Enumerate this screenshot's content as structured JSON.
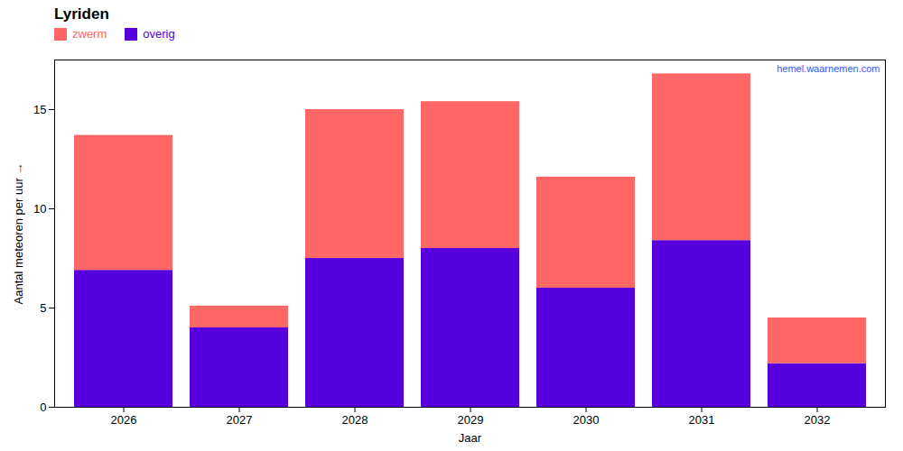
{
  "chart_data": {
    "type": "bar",
    "title": "Lyriden",
    "categories": [
      "2026",
      "2027",
      "2028",
      "2029",
      "2030",
      "2031",
      "2032"
    ],
    "series": [
      {
        "name": "overig",
        "color": "#5500dd",
        "values": [
          6.9,
          4.0,
          7.5,
          8.0,
          6.0,
          8.4,
          2.2
        ]
      },
      {
        "name": "zwerm",
        "color": "#ff6666",
        "values": [
          6.8,
          1.1,
          7.5,
          7.4,
          5.6,
          8.4,
          2.3
        ]
      }
    ],
    "stacked": true,
    "xlabel": "Jaar",
    "ylabel": "Aantal meteoren per uur",
    "ylim": [
      0,
      17.5
    ],
    "yticks": [
      0,
      5,
      10,
      15
    ],
    "grid": false,
    "legend": "upper left",
    "annotations": [
      {
        "text": "hemel.waarnemen.com",
        "color": "#3355ff"
      }
    ]
  }
}
